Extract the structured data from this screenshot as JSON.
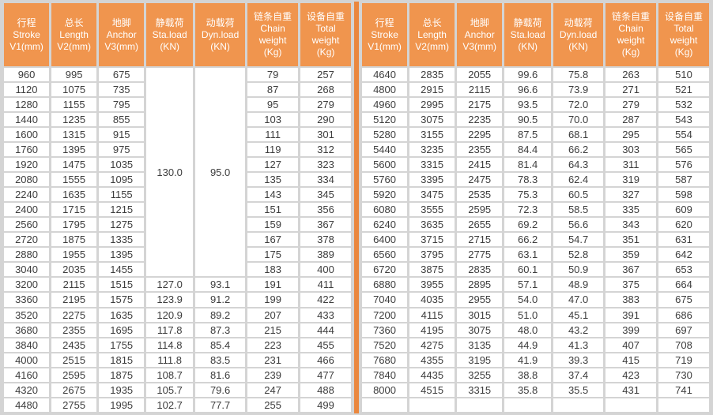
{
  "colors": {
    "background": "#D4D4D4",
    "header_bg": "#F0954E",
    "header_text": "#FFFFFF",
    "divider": "#EA873E",
    "cell_bg": "#FFFFFF",
    "cell_text": "#3D3D3D"
  },
  "header": {
    "columns": [
      {
        "lines": [
          "行程",
          "Stroke",
          "V1(mm)"
        ]
      },
      {
        "lines": [
          "总长",
          "Length",
          "V2(mm)"
        ]
      },
      {
        "lines": [
          "地脚",
          "Anchor",
          "V3(mm)"
        ]
      },
      {
        "lines": [
          "静载荷",
          "Sta.load",
          "(KN)"
        ]
      },
      {
        "lines": [
          "动载荷",
          "Dyn.load",
          "(KN)"
        ]
      },
      {
        "lines": [
          "链条自重",
          "Chain",
          "weight",
          "(Kg)"
        ]
      },
      {
        "lines": [
          "设备自重",
          "Total",
          "weight",
          "(Kg)"
        ]
      }
    ]
  },
  "left_table": {
    "merged": {
      "sta_load": "130.0",
      "dyn_load": "95.0",
      "rowspan": 14
    },
    "rows": [
      [
        "960",
        "995",
        "675",
        null,
        null,
        "79",
        "257"
      ],
      [
        "1120",
        "1075",
        "735",
        null,
        null,
        "87",
        "268"
      ],
      [
        "1280",
        "1155",
        "795",
        null,
        null,
        "95",
        "279"
      ],
      [
        "1440",
        "1235",
        "855",
        null,
        null,
        "103",
        "290"
      ],
      [
        "1600",
        "1315",
        "915",
        null,
        null,
        "111",
        "301"
      ],
      [
        "1760",
        "1395",
        "975",
        null,
        null,
        "119",
        "312"
      ],
      [
        "1920",
        "1475",
        "1035",
        null,
        null,
        "127",
        "323"
      ],
      [
        "2080",
        "1555",
        "1095",
        null,
        null,
        "135",
        "334"
      ],
      [
        "2240",
        "1635",
        "1155",
        null,
        null,
        "143",
        "345"
      ],
      [
        "2400",
        "1715",
        "1215",
        null,
        null,
        "151",
        "356"
      ],
      [
        "2560",
        "1795",
        "1275",
        null,
        null,
        "159",
        "367"
      ],
      [
        "2720",
        "1875",
        "1335",
        null,
        null,
        "167",
        "378"
      ],
      [
        "2880",
        "1955",
        "1395",
        null,
        null,
        "175",
        "389"
      ],
      [
        "3040",
        "2035",
        "1455",
        null,
        null,
        "183",
        "400"
      ],
      [
        "3200",
        "2115",
        "1515",
        "127.0",
        "93.1",
        "191",
        "411"
      ],
      [
        "3360",
        "2195",
        "1575",
        "123.9",
        "91.2",
        "199",
        "422"
      ],
      [
        "3520",
        "2275",
        "1635",
        "120.9",
        "89.2",
        "207",
        "433"
      ],
      [
        "3680",
        "2355",
        "1695",
        "117.8",
        "87.3",
        "215",
        "444"
      ],
      [
        "3840",
        "2435",
        "1755",
        "114.8",
        "85.4",
        "223",
        "455"
      ],
      [
        "4000",
        "2515",
        "1815",
        "111.8",
        "83.5",
        "231",
        "466"
      ],
      [
        "4160",
        "2595",
        "1875",
        "108.7",
        "81.6",
        "239",
        "477"
      ],
      [
        "4320",
        "2675",
        "1935",
        "105.7",
        "79.6",
        "247",
        "488"
      ],
      [
        "4480",
        "2755",
        "1995",
        "102.7",
        "77.7",
        "255",
        "499"
      ]
    ]
  },
  "right_table": {
    "rows": [
      [
        "4640",
        "2835",
        "2055",
        "99.6",
        "75.8",
        "263",
        "510"
      ],
      [
        "4800",
        "2915",
        "2115",
        "96.6",
        "73.9",
        "271",
        "521"
      ],
      [
        "4960",
        "2995",
        "2175",
        "93.5",
        "72.0",
        "279",
        "532"
      ],
      [
        "5120",
        "3075",
        "2235",
        "90.5",
        "70.0",
        "287",
        "543"
      ],
      [
        "5280",
        "3155",
        "2295",
        "87.5",
        "68.1",
        "295",
        "554"
      ],
      [
        "5440",
        "3235",
        "2355",
        "84.4",
        "66.2",
        "303",
        "565"
      ],
      [
        "5600",
        "3315",
        "2415",
        "81.4",
        "64.3",
        "311",
        "576"
      ],
      [
        "5760",
        "3395",
        "2475",
        "78.3",
        "62.4",
        "319",
        "587"
      ],
      [
        "5920",
        "3475",
        "2535",
        "75.3",
        "60.5",
        "327",
        "598"
      ],
      [
        "6080",
        "3555",
        "2595",
        "72.3",
        "58.5",
        "335",
        "609"
      ],
      [
        "6240",
        "3635",
        "2655",
        "69.2",
        "56.6",
        "343",
        "620"
      ],
      [
        "6400",
        "3715",
        "2715",
        "66.2",
        "54.7",
        "351",
        "631"
      ],
      [
        "6560",
        "3795",
        "2775",
        "63.1",
        "52.8",
        "359",
        "642"
      ],
      [
        "6720",
        "3875",
        "2835",
        "60.1",
        "50.9",
        "367",
        "653"
      ],
      [
        "6880",
        "3955",
        "2895",
        "57.1",
        "48.9",
        "375",
        "664"
      ],
      [
        "7040",
        "4035",
        "2955",
        "54.0",
        "47.0",
        "383",
        "675"
      ],
      [
        "7200",
        "4115",
        "3015",
        "51.0",
        "45.1",
        "391",
        "686"
      ],
      [
        "7360",
        "4195",
        "3075",
        "48.0",
        "43.2",
        "399",
        "697"
      ],
      [
        "7520",
        "4275",
        "3135",
        "44.9",
        "41.3",
        "407",
        "708"
      ],
      [
        "7680",
        "4355",
        "3195",
        "41.9",
        "39.3",
        "415",
        "719"
      ],
      [
        "7840",
        "4435",
        "3255",
        "38.8",
        "37.4",
        "423",
        "730"
      ],
      [
        "8000",
        "4515",
        "3315",
        "35.8",
        "35.5",
        "431",
        "741"
      ],
      [
        "",
        "",
        "",
        "",
        "",
        "",
        ""
      ]
    ]
  }
}
